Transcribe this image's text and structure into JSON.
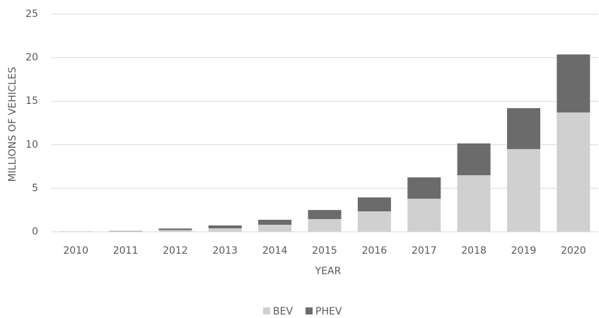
{
  "chart_data": {
    "type": "stacked_bar",
    "x_label": "YEAR",
    "y_label": "MILLIONS OF VEHICLES",
    "categories": [
      "2010",
      "2011",
      "2012",
      "2013",
      "2014",
      "2015",
      "2016",
      "2017",
      "2018",
      "2019",
      "2020"
    ],
    "series": [
      {
        "name": "BEV",
        "color": "#d0d0d0",
        "values": [
          0.02,
          0.06,
          0.2,
          0.4,
          0.81,
          1.46,
          2.35,
          3.8,
          6.5,
          9.5,
          13.7
        ]
      },
      {
        "name": "PHEV",
        "color": "#6b6b6b",
        "values": [
          0.01,
          0.04,
          0.18,
          0.33,
          0.57,
          1.04,
          1.6,
          2.45,
          3.65,
          4.7,
          6.67
        ]
      }
    ],
    "ylim": [
      0,
      25
    ],
    "yticks": [
      0,
      5,
      10,
      15,
      20,
      25
    ],
    "grid": true,
    "legend": "bottom"
  }
}
